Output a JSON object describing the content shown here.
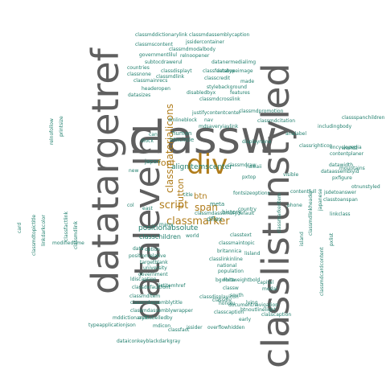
{
  "colors": {
    "large": "#5f5f5f",
    "accent": "#b07c1a",
    "small": "#23806f",
    "background": "#ffffff"
  },
  "words": [
    {
      "text": "classw",
      "tone": "large"
    },
    {
      "text": "classlistunstyled",
      "tone": "large"
    },
    {
      "text": "datalevelhl",
      "tone": "large"
    },
    {
      "text": "datatargetref",
      "tone": "large"
    },
    {
      "text": "div",
      "tone": "accent"
    },
    {
      "text": "classmaterialicons",
      "tone": "accent"
    },
    {
      "text": "classmarker",
      "tone": "accent"
    },
    {
      "text": "script",
      "tone": "accent"
    },
    {
      "text": "button",
      "tone": "accent"
    },
    {
      "text": "span",
      "tone": "accent"
    },
    {
      "text": "font",
      "tone": "accent"
    },
    {
      "text": "btn",
      "tone": "accent"
    },
    {
      "text": "alignitemscenter",
      "tone": "small"
    },
    {
      "text": "positionabsolute",
      "tone": "small"
    },
    {
      "text": "classchildren",
      "tone": "small"
    },
    {
      "text": "dflex",
      "tone": "small"
    },
    {
      "text": "human",
      "tone": "small"
    },
    {
      "text": "btncircle",
      "tone": "small"
    },
    {
      "text": "japan",
      "tone": "small"
    },
    {
      "text": "history",
      "tone": "small"
    },
    {
      "text": "meta",
      "tone": "small"
    },
    {
      "text": "classmddictionarylink classmdassemblycaption",
      "tone": "small"
    },
    {
      "text": "jssidercontainer",
      "tone": "small"
    },
    {
      "text": "classmdmodalbody",
      "tone": "small"
    },
    {
      "text": "classmscontent",
      "tone": "small"
    },
    {
      "text": "governmentlilul",
      "tone": "small"
    },
    {
      "text": "relnoopener",
      "tone": "small"
    },
    {
      "text": "subtocdrawerul",
      "tone": "small"
    },
    {
      "text": "datanermedialimg",
      "tone": "small"
    },
    {
      "text": "countries",
      "tone": "small"
    },
    {
      "text": "classnone",
      "tone": "small"
    },
    {
      "text": "classdisplayt",
      "tone": "small"
    },
    {
      "text": "datatypeimage",
      "tone": "small"
    },
    {
      "text": "classcredit",
      "tone": "small"
    },
    {
      "text": "made",
      "tone": "small"
    },
    {
      "text": "stylebackground",
      "tone": "small"
    },
    {
      "text": "disabledbyx",
      "tone": "small"
    },
    {
      "text": "features",
      "tone": "small"
    },
    {
      "text": "classmdcrosslink",
      "tone": "small"
    },
    {
      "text": "justifycontentcenter",
      "tone": "small"
    },
    {
      "text": "dinlineblock",
      "tone": "small"
    },
    {
      "text": "nav",
      "tone": "small"
    },
    {
      "text": "mdsaveryiaylink",
      "tone": "small"
    },
    {
      "text": "title",
      "tone": "small"
    },
    {
      "text": "world",
      "tone": "small"
    },
    {
      "text": "university",
      "tone": "small"
    },
    {
      "text": "encyclopedia",
      "tone": "small"
    },
    {
      "text": "includingbody",
      "tone": "small"
    },
    {
      "text": "contentplaner",
      "tone": "small"
    },
    {
      "text": "datawidth",
      "tone": "small"
    },
    {
      "text": "dataassemblyid",
      "tone": "small"
    },
    {
      "text": "pxfigure",
      "tone": "small"
    },
    {
      "text": "otnunstyled",
      "tone": "small"
    },
    {
      "text": "jsdetoanswer",
      "tone": "small"
    },
    {
      "text": "classtoanspan",
      "tone": "small"
    },
    {
      "text": "positionrelative",
      "tone": "small"
    },
    {
      "text": "targetblank",
      "tone": "small"
    },
    {
      "text": "government",
      "tone": "small"
    },
    {
      "text": "classmdassemblytitle",
      "tone": "small"
    },
    {
      "text": "classmdassemblywrapper",
      "tone": "small"
    },
    {
      "text": "arialabelledby",
      "tone": "small"
    },
    {
      "text": "mddictionaryft",
      "tone": "small"
    },
    {
      "text": "typeapplicationjson",
      "tone": "small"
    },
    {
      "text": "mdicon",
      "tone": "small"
    },
    {
      "text": "classfact",
      "tone": "small"
    },
    {
      "text": "jssider",
      "tone": "small"
    },
    {
      "text": "overflowhidden",
      "tone": "small"
    },
    {
      "text": "dataiconkeyblackdarkgray",
      "tone": "small"
    },
    {
      "text": "classdisplayicon",
      "tone": "small"
    },
    {
      "text": "classcaption",
      "tone": "small"
    },
    {
      "text": "classlinkinline",
      "tone": "small"
    },
    {
      "text": "britannica",
      "tone": "small"
    },
    {
      "text": "country",
      "tone": "small"
    },
    {
      "text": "national",
      "tone": "small"
    },
    {
      "text": "population",
      "tone": "small"
    },
    {
      "text": "fontweightbold",
      "tone": "small"
    },
    {
      "text": "classw",
      "tone": "small"
    },
    {
      "text": "bgwhite",
      "tone": "small"
    },
    {
      "text": "south",
      "tone": "small"
    },
    {
      "text": "classdiv",
      "tone": "small"
    },
    {
      "text": "lying",
      "tone": "small"
    },
    {
      "text": "honolu",
      "tone": "small"
    },
    {
      "text": "classcaption",
      "tone": "small"
    },
    {
      "text": "btnoutlinelight",
      "tone": "small"
    },
    {
      "text": "early",
      "tone": "small"
    },
    {
      "text": "modal",
      "tone": "small"
    },
    {
      "text": "lisland",
      "tone": "small"
    },
    {
      "text": "dlock",
      "tone": "small"
    },
    {
      "text": "many",
      "tone": "small"
    },
    {
      "text": "new",
      "tone": "small"
    },
    {
      "text": "can",
      "tone": "small"
    },
    {
      "text": "east",
      "tone": "small"
    },
    {
      "text": "option",
      "tone": "small"
    },
    {
      "text": "data",
      "tone": "small"
    },
    {
      "text": "capital",
      "tone": "small"
    },
    {
      "text": "modifiedtime",
      "tone": "small"
    },
    {
      "text": "card",
      "tone": "small"
    },
    {
      "text": "col",
      "tone": "small"
    },
    {
      "text": "hawaii",
      "tone": "small"
    },
    {
      "text": "phone",
      "tone": "small"
    },
    {
      "text": "classmdassemblydefault",
      "tone": "small"
    },
    {
      "text": "listitemhref",
      "tone": "small"
    },
    {
      "text": "classmdcardcontent",
      "tone": "small"
    },
    {
      "text": "classmdlinkheader",
      "tone": "small"
    },
    {
      "text": "japanese",
      "tone": "small"
    },
    {
      "text": "mountains",
      "tone": "small"
    },
    {
      "text": "worldz",
      "tone": "small"
    },
    {
      "text": "classspanchildren",
      "tone": "small"
    },
    {
      "text": "classrighticon",
      "tone": "small"
    },
    {
      "text": "pxlist",
      "tone": "small"
    },
    {
      "text": "island",
      "tone": "small"
    },
    {
      "text": "linkclass",
      "tone": "small"
    },
    {
      "text": "arialabel",
      "tone": "small"
    },
    {
      "text": "visible",
      "tone": "small"
    },
    {
      "text": "contentfull",
      "tone": "small"
    },
    {
      "text": "classmarkeritem",
      "tone": "small"
    },
    {
      "text": "classmdtopictitle",
      "tone": "small"
    },
    {
      "text": "linkdarkcolor",
      "tone": "small"
    },
    {
      "text": "classfactlink",
      "tone": "small"
    },
    {
      "text": "classmdlink",
      "tone": "small"
    },
    {
      "text": "relnofollow",
      "tone": "small"
    },
    {
      "text": "printsize",
      "tone": "small"
    },
    {
      "text": "classmainrecs",
      "tone": "small"
    },
    {
      "text": "headeropen",
      "tone": "small"
    },
    {
      "text": "classmdlink",
      "tone": "small"
    },
    {
      "text": "datasizes",
      "tone": "small"
    },
    {
      "text": "classfactsbox",
      "tone": "small"
    },
    {
      "text": "classmdpromotion",
      "tone": "small"
    },
    {
      "text": "classmdcitation",
      "tone": "small"
    },
    {
      "text": "displaynone",
      "tone": "small"
    },
    {
      "text": "classmdraw",
      "tone": "small"
    },
    {
      "text": "pxtop",
      "tone": "small"
    },
    {
      "text": "fontsizeoptions",
      "tone": "small"
    },
    {
      "text": "classtext",
      "tone": "small"
    },
    {
      "text": "classmaintopic",
      "tone": "small"
    },
    {
      "text": "documentnavigation",
      "tone": "small"
    },
    {
      "text": "classmditem",
      "tone": "small"
    },
    {
      "text": "classdefaultfont",
      "tone": "small"
    },
    {
      "text": "ldiscaption",
      "tone": "small"
    }
  ]
}
